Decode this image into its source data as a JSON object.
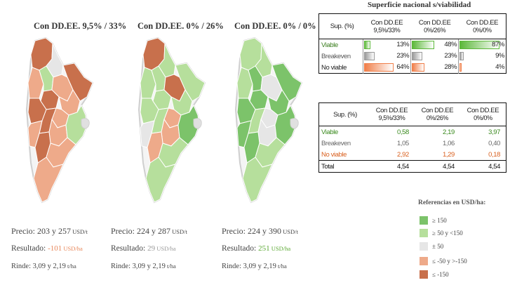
{
  "maps": [
    {
      "title": "Con DD.EE. 9,5% / 33%",
      "precio_label": "Precio: ",
      "precio_value": "203 y 257",
      "precio_unit": " USD/t",
      "resultado_label": "Resultado: ",
      "resultado_value": "-101",
      "resultado_unit": " USD/ha",
      "resultado_color": "#e8875a",
      "rinde_label": "Rinde: ",
      "rinde_value": "3,09 y 2,19",
      "rinde_unit": " t/ha"
    },
    {
      "title": "Con DD.EE. 0% / 26%",
      "precio_label": "Precio: ",
      "precio_value": "224 y 287",
      "precio_unit": " USD/t",
      "resultado_label": "Resultado: ",
      "resultado_value": "29",
      "resultado_unit": " USD/ha",
      "resultado_color": "#999999",
      "rinde_label": "Rinde: ",
      "rinde_value": "3,09 y 2,19",
      "rinde_unit": " t/ha"
    },
    {
      "title": "Con DD.EE. 0% / 0%",
      "precio_label": "Precio: ",
      "precio_value": "224 y 390",
      "precio_unit": " USD/t",
      "resultado_label": "Resultado: ",
      "resultado_value": "251",
      "resultado_unit": " USD/ha",
      "resultado_color": "#5aa832",
      "rinde_label": "Rinde: ",
      "rinde_value": "3,09 y 2,19",
      "rinde_unit": " t/ha"
    }
  ],
  "table1": {
    "title": "Superficie nacional s/viabilidad",
    "header_label": "Sup. (%)",
    "columns": [
      {
        "line1": "Con DD.EE",
        "line2": "9,5%/33%"
      },
      {
        "line1": "Con DD.EE",
        "line2": "0%/26%"
      },
      {
        "line1": "Con DD.EE",
        "line2": "0%/0%"
      }
    ],
    "rows": [
      {
        "label": "Viable",
        "label_color": "#3a7d1e",
        "bar_color": "#5cb83a",
        "values": [
          13,
          48,
          87
        ],
        "labels": [
          "13%",
          "48%",
          "87%"
        ]
      },
      {
        "label": "Breakeven",
        "label_color": "#555555",
        "bar_color": "#9a9a9a",
        "values": [
          23,
          23,
          9
        ],
        "labels": [
          "23%",
          "23%",
          "9%"
        ]
      },
      {
        "label": "No viable",
        "label_color": "#222222",
        "bar_color": "#f07f4a",
        "values": [
          64,
          28,
          4
        ],
        "labels": [
          "64%",
          "28%",
          "4%"
        ]
      }
    ]
  },
  "table2": {
    "header_label": "Sup. (%)",
    "columns": [
      {
        "line1": "Con DD.EE",
        "line2": "9,5%/33%"
      },
      {
        "line1": "Con DD.EE",
        "line2": "0%/26%"
      },
      {
        "line1": "Con DD.EE",
        "line2": "0%/0%"
      }
    ],
    "rows": [
      {
        "label": "Viable",
        "color": "#3a8a1e",
        "values": [
          "0,58",
          "2,19",
          "3,97"
        ]
      },
      {
        "label": "Breakeven",
        "color": "#666666",
        "values": [
          "1,05",
          "1,06",
          "0,40"
        ]
      },
      {
        "label": "No viable",
        "color": "#d9601f",
        "values": [
          "2,92",
          "1,29",
          "0,18"
        ]
      },
      {
        "label": "Total",
        "color": "#111111",
        "values": [
          "4,54",
          "4,54",
          "4,54"
        ]
      }
    ]
  },
  "legend": {
    "title": "Referencias en USD/ha:",
    "items": [
      {
        "text": "≥ 150",
        "color": "#7cc36a"
      },
      {
        "text": "≥ 50 y <150",
        "color": "#b6df9c"
      },
      {
        "text": "± 50",
        "color": "#e6e6e6"
      },
      {
        "text": "≤ -50 y >-150",
        "color": "#eeaa8a"
      },
      {
        "text": "≤ -150",
        "color": "#c8704c"
      }
    ]
  },
  "region_colors": {
    "map1": [
      "#c8704c",
      "#e6e6e6",
      "#c8704c",
      "#eeaa8a",
      "#b6df9c",
      "#eeaa8a",
      "#c8704c",
      "#c8704c",
      "#eeaa8a",
      "#eeaa8a",
      "#c8704c",
      "#eeaa8a",
      "#eeaa8a",
      "#c8704c",
      "#b6df9c",
      "#eeaa8a",
      "#eeaa8a"
    ],
    "map2": [
      "#c8704c",
      "#b6df9c",
      "#b6df9c",
      "#b6df9c",
      "#b6df9c",
      "#c8704c",
      "#b6df9c",
      "#b6df9c",
      "#b6df9c",
      "#eeaa8a",
      "#b6df9c",
      "#e6e6e6",
      "#eeaa8a",
      "#eeaa8a",
      "#7cc36a",
      "#b6df9c",
      "#b6df9c"
    ],
    "map3": [
      "#b6df9c",
      "#b6df9c",
      "#7cc36a",
      "#b6df9c",
      "#7cc36a",
      "#e6e6e6",
      "#7cc36a",
      "#7cc36a",
      "#7cc36a",
      "#e6e6e6",
      "#b6df9c",
      "#7cc36a",
      "#e6e6e6",
      "#7cc36a",
      "#7cc36a",
      "#b6df9c",
      "#b6df9c"
    ]
  }
}
